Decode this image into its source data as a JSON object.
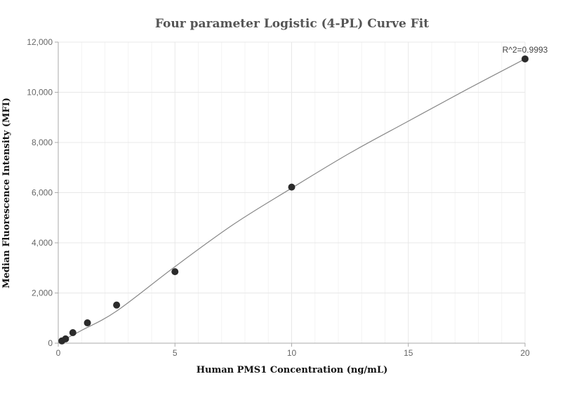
{
  "chart_data": {
    "type": "scatter",
    "title": "Four parameter Logistic (4-PL) Curve Fit",
    "xlabel": "Human PMS1 Concentration (ng/mL)",
    "ylabel": "Median Fluorescence Intensity (MFI)",
    "xlim": [
      0,
      20
    ],
    "ylim": [
      0,
      12000
    ],
    "x_ticks": [
      0,
      5,
      10,
      15,
      20
    ],
    "y_ticks": [
      0,
      2000,
      4000,
      6000,
      8000,
      10000,
      12000
    ],
    "x_tick_labels": [
      "0",
      "5",
      "10",
      "15",
      "20"
    ],
    "y_tick_labels": [
      "0",
      "2,000",
      "4,000",
      "6,000",
      "8,000",
      "10,000",
      "12,000"
    ],
    "grid": true,
    "annotation": "R^2=0.9993",
    "points": [
      {
        "x": 0.156,
        "y": 90
      },
      {
        "x": 0.3125,
        "y": 170
      },
      {
        "x": 0.625,
        "y": 420
      },
      {
        "x": 1.25,
        "y": 810
      },
      {
        "x": 2.5,
        "y": 1520
      },
      {
        "x": 5,
        "y": 2850
      },
      {
        "x": 10,
        "y": 6220
      },
      {
        "x": 20,
        "y": 11330
      }
    ],
    "fit_curve": {
      "name": "",
      "x": [
        0,
        1,
        2.5,
        5,
        7.5,
        10,
        12.5,
        15,
        17.5,
        20
      ],
      "y": [
        20,
        510,
        1280,
        3050,
        4730,
        6180,
        7580,
        8850,
        10110,
        11330
      ]
    },
    "colors": {
      "points": "#2b2b2b",
      "curve": "#888888",
      "grid": "#e8e8e8",
      "axis": "#aaaaaa"
    }
  }
}
